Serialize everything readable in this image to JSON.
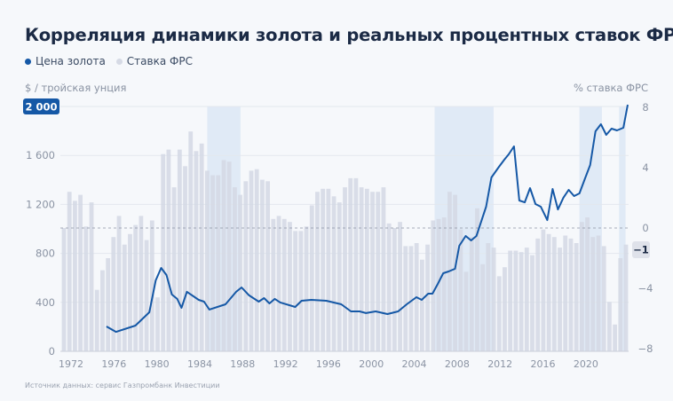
{
  "title": "Корреляция динамики золота и реальных процентных ставок ФРС",
  "legend": [
    {
      "label": "Цена золота",
      "color": "#1558a6"
    },
    {
      "label": "Ставка ФРС",
      "color": "#d6dae5"
    }
  ],
  "source": "Источник данных: сервис Газпромбанк Инвестиции",
  "chart_data": {
    "type": "bar+line",
    "title": "Корреляция динамики золота и реальных процентных ставок ФРС",
    "left_axis": {
      "label": "$ / тройская унция",
      "range": [
        0,
        2000
      ],
      "ticks": [
        0,
        400,
        800,
        1200,
        1600
      ],
      "tick_labels": [
        "0",
        "400",
        "800",
        "1 200",
        "1 600"
      ],
      "highlight_label": "2 000"
    },
    "right_axis": {
      "label": "% ставка ФРС",
      "range": [
        -8,
        8
      ],
      "ticks": [
        8,
        4,
        0,
        -4,
        -8
      ],
      "tick_labels": [
        "8",
        "4",
        "0",
        "−4",
        "−8"
      ],
      "highlight_label": "−1",
      "zero_line": "dashed"
    },
    "x_axis": {
      "range": [
        1971,
        2024
      ],
      "tick_labels": [
        "1972",
        "1976",
        "1980",
        "1984",
        "1988",
        "1992",
        "1996",
        "2000",
        "2004",
        "2008",
        "2012",
        "2016",
        "2020"
      ],
      "ticks": [
        1972,
        1976,
        1980,
        1984,
        1988,
        1992,
        1996,
        2000,
        2004,
        2008,
        2012,
        2016,
        2020
      ]
    },
    "shaded_periods": [
      [
        1984.7,
        1987.8
      ],
      [
        2005.9,
        2011.4
      ],
      [
        2019.4,
        2021.5
      ],
      [
        2023.1,
        2023.7
      ]
    ],
    "series": [
      {
        "name": "Ставка ФРС",
        "type": "bar",
        "axis": "right",
        "color": "#d6dae5",
        "values": [
          0.0,
          2.4,
          1.8,
          2.2,
          0.1,
          1.7,
          -4.1,
          -2.8,
          -2.0,
          -0.6,
          0.8,
          -1.1,
          -0.4,
          0.2,
          0.8,
          -0.8,
          0.5,
          -4.6,
          4.9,
          5.2,
          2.7,
          5.2,
          4.1,
          6.4,
          5.1,
          5.6,
          3.8,
          3.5,
          3.5,
          4.5,
          4.4,
          2.7,
          2.2,
          3.1,
          3.8,
          3.9,
          3.2,
          3.1,
          0.6,
          0.8,
          0.6,
          0.4,
          -0.2,
          -0.2,
          0.1,
          1.5,
          2.4,
          2.6,
          2.6,
          2.1,
          1.7,
          2.7,
          3.3,
          3.3,
          2.7,
          2.6,
          2.4,
          2.4,
          2.7,
          0.3,
          0.0,
          0.4,
          -1.2,
          -1.2,
          -1.0,
          -2.1,
          -1.1,
          0.5,
          0.6,
          0.7,
          2.4,
          2.2,
          -0.1,
          -2.9,
          -0.6,
          1.3,
          -2.4,
          -1.0,
          -1.3,
          -3.2,
          -2.6,
          -1.5,
          -1.5,
          -1.6,
          -1.3,
          -1.8,
          -0.7,
          -0.1,
          -0.4,
          -0.6,
          -1.3,
          -0.5,
          -0.7,
          -1.0,
          0.4,
          0.7,
          -0.6,
          -0.5,
          -1.2,
          -4.9,
          -6.4,
          -2.0,
          -1.1
        ]
      },
      {
        "name": "Цена золота",
        "type": "line",
        "axis": "left",
        "color": "#1558a6",
        "x": [
          1975.3,
          1976.2,
          1978.0,
          1979.3,
          1979.9,
          1980.4,
          1980.9,
          1981.4,
          1981.9,
          1982.3,
          1982.8,
          1983.9,
          1984.4,
          1984.9,
          1986.4,
          1987.4,
          1987.9,
          1988.6,
          1989.5,
          1990.0,
          1990.5,
          1991.0,
          1991.5,
          1992.9,
          1993.5,
          1994.4,
          1995.8,
          1997.2,
          1998.1,
          1998.9,
          1999.5,
          2000.4,
          2001.5,
          2002.5,
          2003.3,
          2004.2,
          2004.7,
          2005.3,
          2005.7,
          2006.2,
          2006.7,
          2007.2,
          2007.8,
          2008.2,
          2008.8,
          2009.3,
          2009.8,
          2010.7,
          2011.2,
          2011.9,
          2012.4,
          2012.8,
          2013.3,
          2013.8,
          2014.3,
          2014.8,
          2015.3,
          2015.8,
          2016.4,
          2016.9,
          2017.4,
          2017.9,
          2018.4,
          2018.9,
          2019.4,
          2019.9,
          2020.4,
          2020.9,
          2021.4,
          2021.9,
          2022.4,
          2022.9,
          2023.5,
          2023.9
        ],
        "y": [
          203,
          159,
          210,
          319,
          580,
          681,
          623,
          464,
          428,
          355,
          486,
          420,
          406,
          341,
          384,
          486,
          522,
          457,
          406,
          435,
          391,
          428,
          399,
          362,
          413,
          420,
          413,
          384,
          326,
          326,
          312,
          326,
          304,
          326,
          384,
          442,
          420,
          471,
          471,
          551,
          638,
          652,
          674,
          862,
          942,
          906,
          942,
          1181,
          1420,
          1507,
          1565,
          1609,
          1674,
          1232,
          1217,
          1333,
          1203,
          1181,
          1072,
          1326,
          1159,
          1254,
          1319,
          1268,
          1290,
          1406,
          1522,
          1797,
          1855,
          1768,
          1819,
          1804,
          1826,
          2014
        ]
      }
    ]
  }
}
